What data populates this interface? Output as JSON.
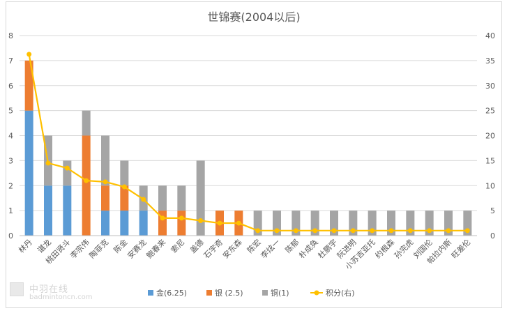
{
  "chart_data": {
    "type": "bar",
    "stacked": true,
    "title": "世锦赛(2004以后)",
    "categories": [
      "林丹",
      "谌龙",
      "桃田贤斗",
      "李宗伟",
      "陶菲克",
      "陈金",
      "安赛龙",
      "鲍春来",
      "索尼",
      "盖德",
      "石宇奇",
      "安东森",
      "陈宏",
      "李炫一",
      "陈郁",
      "朴成奂",
      "杜鹏宇",
      "阮进明",
      "小苏吉亚托",
      "约根森",
      "孙完虎",
      "刘国伦",
      "帕拉内斯",
      "旺差伦"
    ],
    "series": [
      {
        "name": "金(6.25)",
        "color": "#5b9bd5",
        "axis": "left",
        "values": [
          5,
          2,
          2,
          0,
          1,
          1,
          1,
          0,
          0,
          0,
          0,
          0,
          0,
          0,
          0,
          0,
          0,
          0,
          0,
          0,
          0,
          0,
          0,
          0
        ]
      },
      {
        "name": "银 (2.5)",
        "color": "#ed7d31",
        "axis": "left",
        "values": [
          2,
          0,
          0,
          4,
          1,
          1,
          0,
          1,
          1,
          0,
          1,
          1,
          0,
          0,
          0,
          0,
          0,
          0,
          0,
          0,
          0,
          0,
          0,
          0
        ]
      },
      {
        "name": "铜(1)",
        "color": "#a5a5a5",
        "axis": "left",
        "values": [
          0,
          2,
          1,
          1,
          2,
          1,
          1,
          1,
          1,
          3,
          0,
          0,
          1,
          1,
          1,
          1,
          1,
          1,
          1,
          1,
          1,
          1,
          1,
          1
        ]
      },
      {
        "name": "积分(右)",
        "color": "#ffc000",
        "type": "line",
        "axis": "right",
        "values": [
          36.25,
          14.5,
          13.5,
          11,
          10.75,
          9.75,
          7.25,
          3.5,
          3.5,
          3,
          2.5,
          2.5,
          1,
          1,
          1,
          1,
          1,
          1,
          1,
          1,
          1,
          1,
          1,
          1
        ]
      }
    ],
    "y_left": {
      "min": 0,
      "max": 8,
      "ticks": [
        "0",
        "1",
        "2",
        "3",
        "4",
        "5",
        "6",
        "7",
        "8"
      ]
    },
    "y_right": {
      "min": 0,
      "max": 40,
      "ticks": [
        "0",
        "5",
        "10",
        "15",
        "20",
        "25",
        "30",
        "35",
        "40"
      ]
    },
    "grid": true,
    "legend_position": "bottom"
  },
  "watermark": {
    "name": "中羽在线",
    "url": "badmintoncn.com"
  }
}
